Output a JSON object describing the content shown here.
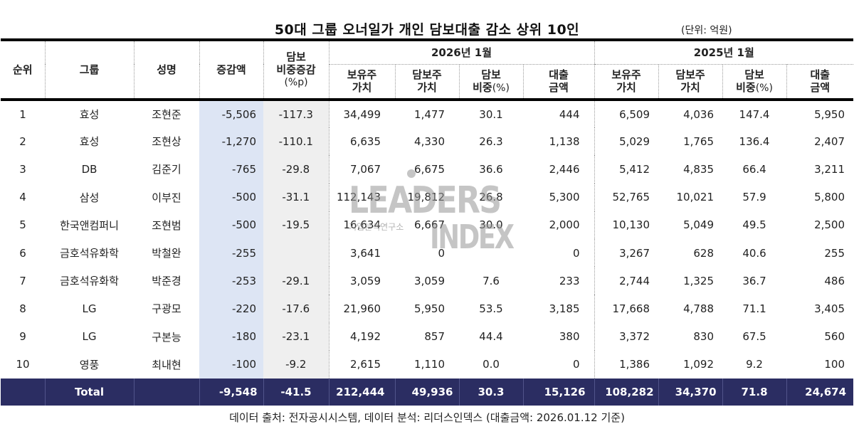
{
  "header": {
    "title": "50대 그룹 오너일가 개인 담보대출 감소 상위 10인",
    "unit": "(단위: 억원)"
  },
  "columns": {
    "rank": "순위",
    "group": "그룹",
    "name": "성명",
    "change_amount": "증감액",
    "ratio_change_line1": "담보",
    "ratio_change_line2": "비중증감",
    "ratio_change_line3": "(%p)",
    "period_2026": "2026년 1월",
    "period_2025": "2025년 1월",
    "held_value_l1": "보유주",
    "held_value_l2": "가치",
    "pledged_value_l1": "담보주",
    "pledged_value_l2": "가치",
    "pledge_ratio_l1": "담보",
    "pledge_ratio_l2": "비중",
    "pledge_ratio_unit": "(%)",
    "loan_amount_l1": "대출",
    "loan_amount_l2": "금액"
  },
  "rows": [
    {
      "rank": "1",
      "group": "효성",
      "name": "조현준",
      "change": "-5,506",
      "ratio_change": "-117.3",
      "y2026": {
        "held": "34,499",
        "pledged": "1,477",
        "ratio": "30.1",
        "loan": "444"
      },
      "y2025": {
        "held": "6,509",
        "pledged": "4,036",
        "ratio": "147.4",
        "loan": "5,950"
      }
    },
    {
      "rank": "2",
      "group": "효성",
      "name": "조현상",
      "change": "-1,270",
      "ratio_change": "-110.1",
      "y2026": {
        "held": "6,635",
        "pledged": "4,330",
        "ratio": "26.3",
        "loan": "1,138"
      },
      "y2025": {
        "held": "5,029",
        "pledged": "1,765",
        "ratio": "136.4",
        "loan": "2,407"
      }
    },
    {
      "rank": "3",
      "group": "DB",
      "name": "김준기",
      "change": "-765",
      "ratio_change": "-29.8",
      "y2026": {
        "held": "7,067",
        "pledged": "6,675",
        "ratio": "36.6",
        "loan": "2,446"
      },
      "y2025": {
        "held": "5,412",
        "pledged": "4,835",
        "ratio": "66.4",
        "loan": "3,211"
      }
    },
    {
      "rank": "4",
      "group": "삼성",
      "name": "이부진",
      "change": "-500",
      "ratio_change": "-31.1",
      "y2026": {
        "held": "112,143",
        "pledged": "19,812",
        "ratio": "26.8",
        "loan": "5,300"
      },
      "y2025": {
        "held": "52,765",
        "pledged": "10,021",
        "ratio": "57.9",
        "loan": "5,800"
      }
    },
    {
      "rank": "5",
      "group": "한국앤컴퍼니",
      "name": "조현범",
      "change": "-500",
      "ratio_change": "-19.5",
      "y2026": {
        "held": "16,634",
        "pledged": "6,667",
        "ratio": "30.0",
        "loan": "2,000"
      },
      "y2025": {
        "held": "10,130",
        "pledged": "5,049",
        "ratio": "49.5",
        "loan": "2,500"
      }
    },
    {
      "rank": "6",
      "group": "금호석유화학",
      "name": "박철완",
      "change": "-255",
      "ratio_change": "",
      "y2026": {
        "held": "3,641",
        "pledged": "0",
        "ratio": "",
        "loan": "0"
      },
      "y2025": {
        "held": "3,267",
        "pledged": "628",
        "ratio": "40.6",
        "loan": "255"
      }
    },
    {
      "rank": "7",
      "group": "금호석유화학",
      "name": "박준경",
      "change": "-253",
      "ratio_change": "-29.1",
      "y2026": {
        "held": "3,059",
        "pledged": "3,059",
        "ratio": "7.6",
        "loan": "233"
      },
      "y2025": {
        "held": "2,744",
        "pledged": "1,325",
        "ratio": "36.7",
        "loan": "486"
      }
    },
    {
      "rank": "8",
      "group": "LG",
      "name": "구광모",
      "change": "-220",
      "ratio_change": "-17.6",
      "y2026": {
        "held": "21,960",
        "pledged": "5,950",
        "ratio": "53.5",
        "loan": "3,185"
      },
      "y2025": {
        "held": "17,668",
        "pledged": "4,788",
        "ratio": "71.1",
        "loan": "3,405"
      }
    },
    {
      "rank": "9",
      "group": "LG",
      "name": "구본능",
      "change": "-180",
      "ratio_change": "-23.1",
      "y2026": {
        "held": "4,192",
        "pledged": "857",
        "ratio": "44.4",
        "loan": "380"
      },
      "y2025": {
        "held": "3,372",
        "pledged": "830",
        "ratio": "67.5",
        "loan": "560"
      }
    },
    {
      "rank": "10",
      "group": "영풍",
      "name": "최내현",
      "change": "-100",
      "ratio_change": "-9.2",
      "y2026": {
        "held": "2,615",
        "pledged": "1,110",
        "ratio": "0.0",
        "loan": "0"
      },
      "y2025": {
        "held": "1,386",
        "pledged": "1,092",
        "ratio": "9.2",
        "loan": "100"
      }
    }
  ],
  "total": {
    "label": "Total",
    "change": "-9,548",
    "ratio_change": "-41.5",
    "y2026": {
      "held": "212,444",
      "pledged": "49,936",
      "ratio": "30.3",
      "loan": "15,126"
    },
    "y2025": {
      "held": "108,282",
      "pledged": "34,370",
      "ratio": "71.8",
      "loan": "24,674"
    }
  },
  "watermark": {
    "line1": "LEADERS",
    "line2": "INDEX",
    "sub": "기업분석연구소"
  },
  "footer": {
    "source": "데이터 출처: 전자공시시스템, 데이터 분석: 리더스인덱스 (대출금액: 2026.01.12 기준)"
  },
  "colors": {
    "total_row_bg": "#2b2d62",
    "change_col_bg": "#dde5f4",
    "ratio_change_col_bg": "#efefef"
  }
}
